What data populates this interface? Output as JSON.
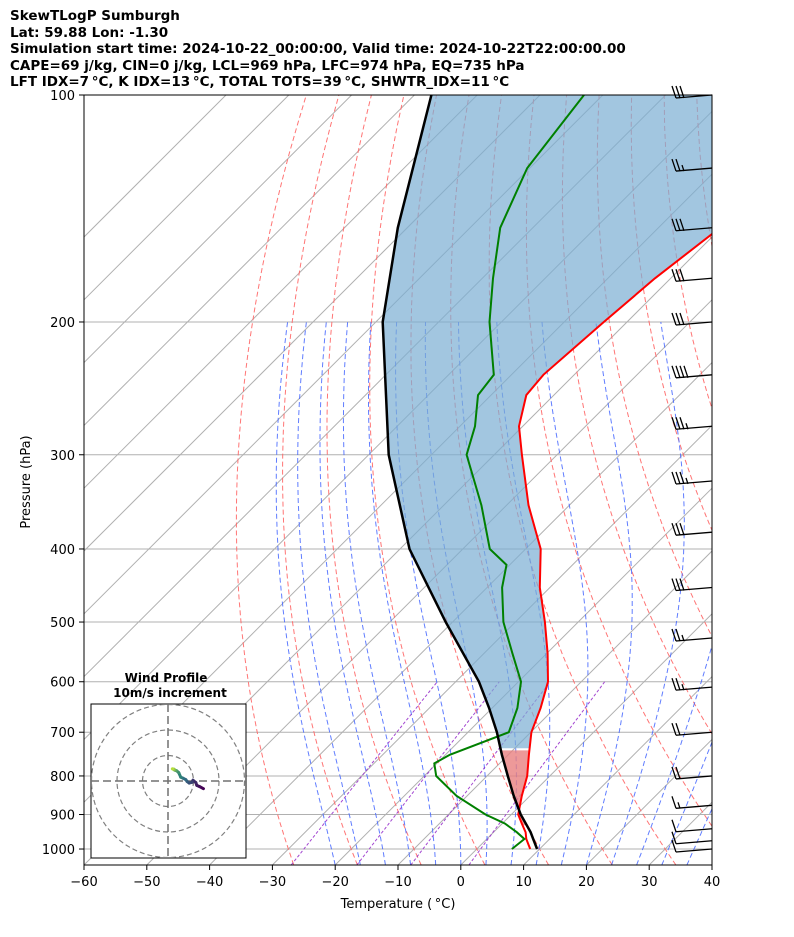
{
  "header": {
    "line1": "SkewTLogP Sumburgh",
    "line2": "Lat: 59.88   Lon: -1.30",
    "line3": "Simulation start time: 2024-10-22_00:00:00, Valid time: 2024-10-22T22:00:00.00",
    "line4": "CAPE=69 j/kg, CIN=0 j/kg, LCL=969 hPa, LFC=974 hPa, EQ=735 hPa",
    "line5": "LFT IDX=7 °C, K IDX=13 °C, TOTAL TOTS=39 °C, SHWTR_IDX=11 °C"
  },
  "colors": {
    "temperature": "#ff0000",
    "dewpoint": "#008000",
    "parcel": "#000000",
    "cape_fill": "#7aaed3",
    "cin_fill": "#e88080",
    "dry_adiabats": "#ff6666",
    "moist_adiabats": "#4466ff",
    "mixing_ratio": "#9933cc",
    "isotherms": "#aaaaaa"
  },
  "chart_data": {
    "type": "line",
    "title": "",
    "xlabel": "Temperature ( °C)",
    "ylabel": "Pressure (hPa)",
    "xlim": [
      -60,
      40
    ],
    "ylim": [
      1050,
      100
    ],
    "y_scale": "log",
    "skew": true,
    "grid": true,
    "x_ticks": [
      "−60",
      "−50",
      "−40",
      "−30",
      "−20",
      "−10",
      "0",
      "10",
      "20",
      "30",
      "40"
    ],
    "x_tick_values": [
      -60,
      -50,
      -40,
      -30,
      -20,
      -10,
      0,
      10,
      20,
      30,
      40
    ],
    "y_ticks": [
      "1000",
      "900",
      "800",
      "700",
      "600",
      "500",
      "400",
      "300",
      "200",
      "100"
    ],
    "y_tick_values": [
      1000,
      900,
      800,
      700,
      600,
      500,
      400,
      300,
      200,
      100
    ],
    "series": [
      {
        "id": "temperature",
        "pressure": [
          1000,
          970,
          950,
          925,
          900,
          850,
          800,
          750,
          700,
          650,
          600,
          550,
          500,
          450,
          400,
          350,
          300,
          275,
          250,
          235,
          200,
          175,
          150,
          125,
          100
        ],
        "temp": [
          8.5,
          6.3,
          5.1,
          3.1,
          1.1,
          -1.3,
          -3.6,
          -6.7,
          -9.9,
          -12.3,
          -15.3,
          -19.9,
          -25.3,
          -31.6,
          -37.6,
          -46.5,
          -55.6,
          -60.6,
          -64.4,
          -64.9,
          -63.7,
          -62.5,
          -60.2,
          -58.8,
          -55.5
        ]
      },
      {
        "id": "dewpoint",
        "pressure": [
          1000,
          970,
          950,
          925,
          900,
          850,
          800,
          770,
          750,
          700,
          650,
          600,
          550,
          500,
          450,
          420,
          400,
          350,
          300,
          275,
          250,
          235,
          200,
          175,
          150,
          125,
          100
        ],
        "dewpoint": [
          5.6,
          6.0,
          3.7,
          0.4,
          -4.1,
          -11.7,
          -18.1,
          -20.4,
          -19.3,
          -13.5,
          -16.0,
          -19.6,
          -25.5,
          -31.9,
          -37.6,
          -40.5,
          -45.7,
          -54.0,
          -64.4,
          -67.6,
          -72.1,
          -72.8,
          -81.9,
          -88.3,
          -95.2,
          -100.4,
          -103.0
        ]
      },
      {
        "id": "parcel",
        "pressure": [
          1000,
          970,
          950,
          900,
          850,
          800,
          750,
          735,
          700,
          650,
          600,
          500,
          400,
          300,
          200,
          150,
          100
        ],
        "temp": [
          9.6,
          7.4,
          5.9,
          1.5,
          -2.6,
          -6.7,
          -11.0,
          -12.3,
          -15.4,
          -20.5,
          -26.3,
          -41.1,
          -58.5,
          -76.8,
          -98.9,
          -111.5,
          -127.3
        ]
      }
    ],
    "wind_barbs": [
      {
        "pressure": 100,
        "speed_kt": 30
      },
      {
        "pressure": 125,
        "speed_kt": 25
      },
      {
        "pressure": 150,
        "speed_kt": 30
      },
      {
        "pressure": 175,
        "speed_kt": 30
      },
      {
        "pressure": 200,
        "speed_kt": 30
      },
      {
        "pressure": 235,
        "speed_kt": 40
      },
      {
        "pressure": 275,
        "speed_kt": 35
      },
      {
        "pressure": 325,
        "speed_kt": 35
      },
      {
        "pressure": 380,
        "speed_kt": 30
      },
      {
        "pressure": 450,
        "speed_kt": 30
      },
      {
        "pressure": 525,
        "speed_kt": 25
      },
      {
        "pressure": 610,
        "speed_kt": 25
      },
      {
        "pressure": 700,
        "speed_kt": 20
      },
      {
        "pressure": 800,
        "speed_kt": 20
      },
      {
        "pressure": 875,
        "speed_kt": 15
      },
      {
        "pressure": 940,
        "speed_kt": 10
      },
      {
        "pressure": 975,
        "speed_kt": 10
      },
      {
        "pressure": 1000,
        "speed_kt": 10
      }
    ],
    "hodograph": {
      "title": "Wind Profile",
      "subtitle": "10m/s increment",
      "rings_ms": [
        10,
        20,
        30
      ],
      "u": [
        13.9,
        12.4,
        11.3,
        10.9,
        9.8,
        9.4,
        8.3,
        7.5,
        7.0,
        5.9,
        5.0,
        4.2,
        3.4,
        2.8,
        2.4,
        2.4,
        2.0,
        1.9,
        1.7
      ],
      "v": [
        -3.0,
        -2.2,
        -1.7,
        -0.6,
        0.3,
        -0.5,
        -0.8,
        -0.2,
        0.5,
        1.1,
        1.5,
        3.3,
        4.0,
        4.2,
        4.4,
        4.6,
        4.7,
        4.7,
        4.8
      ]
    }
  }
}
